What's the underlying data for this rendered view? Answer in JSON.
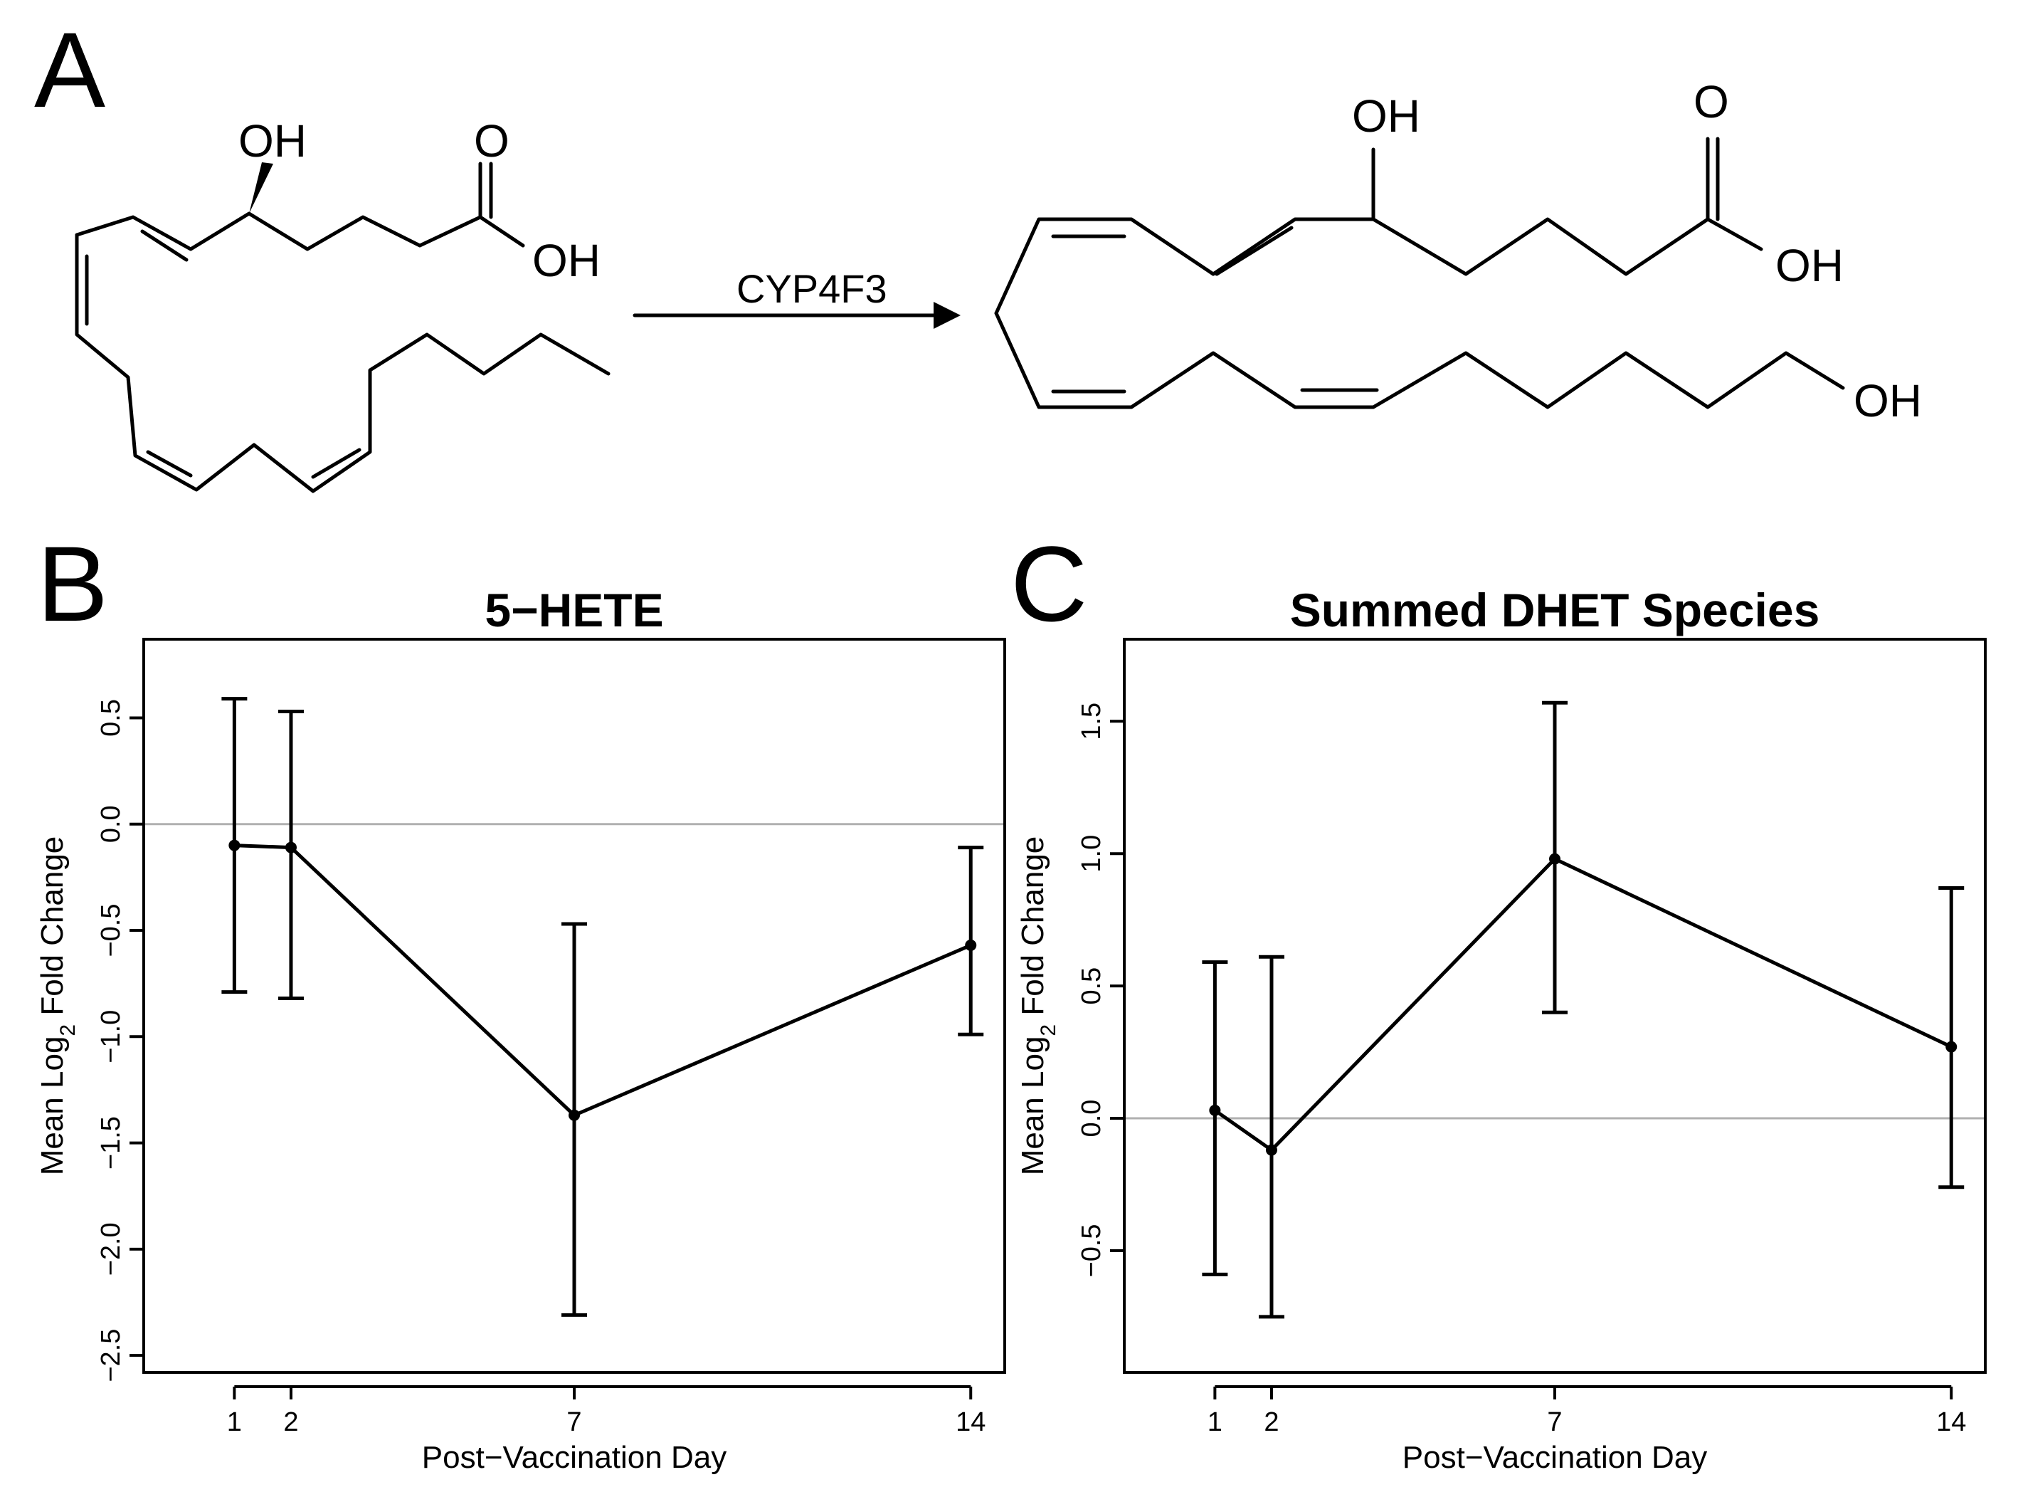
{
  "panels": {
    "a": {
      "letter": "A"
    },
    "b": {
      "letter": "B"
    },
    "c": {
      "letter": "C"
    }
  },
  "reaction": {
    "enzyme": "CYP4F3",
    "atoms": {
      "oh": "OH",
      "o": "O"
    }
  },
  "chart_data": [
    {
      "type": "line",
      "title": "5−HETE",
      "xlabel": "Post−Vaccination Day",
      "ylabel": "Mean Log₂ Fold Change",
      "ylabel_main": "Mean Log",
      "ylabel_sub": "2",
      "ylabel_rest": " Fold Change",
      "x": [
        1,
        2,
        7,
        14
      ],
      "x_tick_labels": [
        "1",
        "2",
        "7",
        "14"
      ],
      "xlim": [
        -0.6,
        14.6
      ],
      "y": [
        -0.1,
        -0.11,
        -1.37,
        -0.57
      ],
      "y_lower": [
        -0.79,
        -0.82,
        -2.31,
        -0.99
      ],
      "y_upper": [
        0.59,
        0.53,
        -0.47,
        -0.11
      ],
      "ylim": [
        -2.58,
        0.87
      ],
      "y_ticks": [
        0.5,
        0.0,
        -0.5,
        -1.0,
        -1.5,
        -2.0,
        -2.5
      ],
      "y_tick_labels": [
        "0.5",
        "0.0",
        "−0.5",
        "−1.0",
        "−1.5",
        "−2.0",
        "−2.5"
      ],
      "reference_line": 0,
      "grid": false
    },
    {
      "type": "line",
      "title": "Summed DHET Species",
      "xlabel": "Post−Vaccination Day",
      "ylabel": "Mean Log₂ Fold Change",
      "ylabel_main": "Mean Log",
      "ylabel_sub": "2",
      "ylabel_rest": " Fold Change",
      "x": [
        1,
        2,
        7,
        14
      ],
      "x_tick_labels": [
        "1",
        "2",
        "7",
        "14"
      ],
      "xlim": [
        -0.6,
        14.6
      ],
      "y": [
        0.03,
        -0.12,
        0.98,
        0.27
      ],
      "y_lower": [
        -0.59,
        -0.75,
        0.4,
        -0.26
      ],
      "y_upper": [
        0.59,
        0.61,
        1.57,
        0.87
      ],
      "ylim": [
        -0.96,
        1.81
      ],
      "y_ticks": [
        1.5,
        1.0,
        0.5,
        0.0,
        -0.5
      ],
      "y_tick_labels": [
        "1.5",
        "1.0",
        "0.5",
        "0.0",
        "−0.5"
      ],
      "reference_line": 0,
      "grid": false
    }
  ]
}
